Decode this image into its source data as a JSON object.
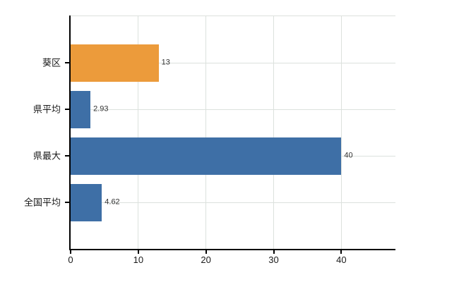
{
  "chart_data": {
    "type": "bar",
    "orientation": "horizontal",
    "title": "",
    "xlabel": "",
    "ylabel": "",
    "categories": [
      "葵区",
      "県平均",
      "県最大",
      "全国平均"
    ],
    "values": [
      13,
      2.93,
      40,
      4.62
    ],
    "value_labels": [
      "13",
      "2.93",
      "40",
      "4.62"
    ],
    "bar_colors": [
      "#ec9b3b",
      "#3e6fa6",
      "#3e6fa6",
      "#3e6fa6"
    ],
    "x_ticks": [
      0,
      10,
      20,
      30,
      40
    ],
    "x_tick_labels": [
      "0",
      "10",
      "20",
      "30",
      "40"
    ],
    "xlim": [
      0,
      48
    ],
    "grid": true,
    "legend_position": "none",
    "colors": {
      "bar_orange": "#ec9b3b",
      "bar_blue": "#3e6fa6",
      "gridline": "#dce1dd",
      "axis": "#000000",
      "text": "#1a1a1a",
      "value_text": "#333333",
      "background": "#ffffff"
    }
  }
}
